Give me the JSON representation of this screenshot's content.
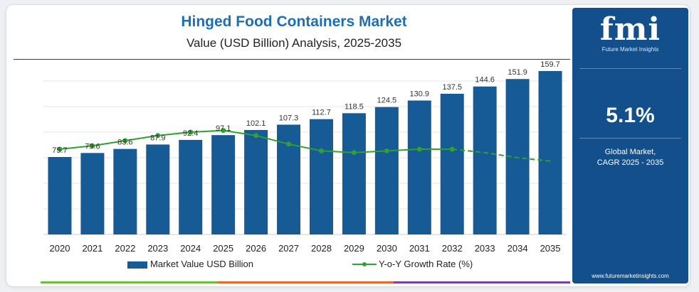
{
  "header": {
    "title": "Hinged Food Containers Market",
    "subtitle": "Value (USD Billion) Analysis, 2025-2035"
  },
  "side_panel": {
    "logo_text": "fmi",
    "logo_subtext": "Future Market Insights",
    "cagr_value": "5.1%",
    "cagr_label_line1": "Global Market,",
    "cagr_label_line2": "CAGR 2025 - 2035",
    "website": "www.futuremarketinsights.com"
  },
  "colors": {
    "bar": "#165b95",
    "line": "#2ea12e",
    "title": "#1d6fb5",
    "panel": "#124f8b",
    "strip": [
      "#6fbd3a",
      "#e46b2c",
      "#7b3fa5"
    ]
  },
  "chart_data": {
    "type": "bar",
    "categories": [
      "2020",
      "2021",
      "2022",
      "2023",
      "2024",
      "2025",
      "2026",
      "2027",
      "2028",
      "2029",
      "2030",
      "2031",
      "2032",
      "2033",
      "2034",
      "2035"
    ],
    "series": [
      {
        "name": "Market Value USD Billion",
        "type": "bar",
        "values": [
          75.7,
          79.6,
          83.6,
          87.9,
          92.4,
          97.1,
          102.1,
          107.3,
          112.7,
          118.5,
          124.5,
          130.9,
          137.5,
          144.6,
          151.9,
          159.7
        ]
      },
      {
        "name": "Y-o-Y Growth Rate (%)",
        "type": "line",
        "values": [
          5.0,
          5.2,
          5.5,
          5.8,
          6.0,
          6.1,
          5.8,
          5.3,
          4.9,
          4.8,
          4.9,
          5.0,
          5.0,
          4.8,
          4.5,
          4.3
        ]
      }
    ],
    "legend": {
      "bar_label": "Market Value USD Billion",
      "line_label": "Y-o-Y Growth Rate (%)",
      "placement": "bottom"
    },
    "grid": true,
    "ylim": [
      0,
      175
    ],
    "y2lim": [
      0,
      9.5
    ]
  }
}
